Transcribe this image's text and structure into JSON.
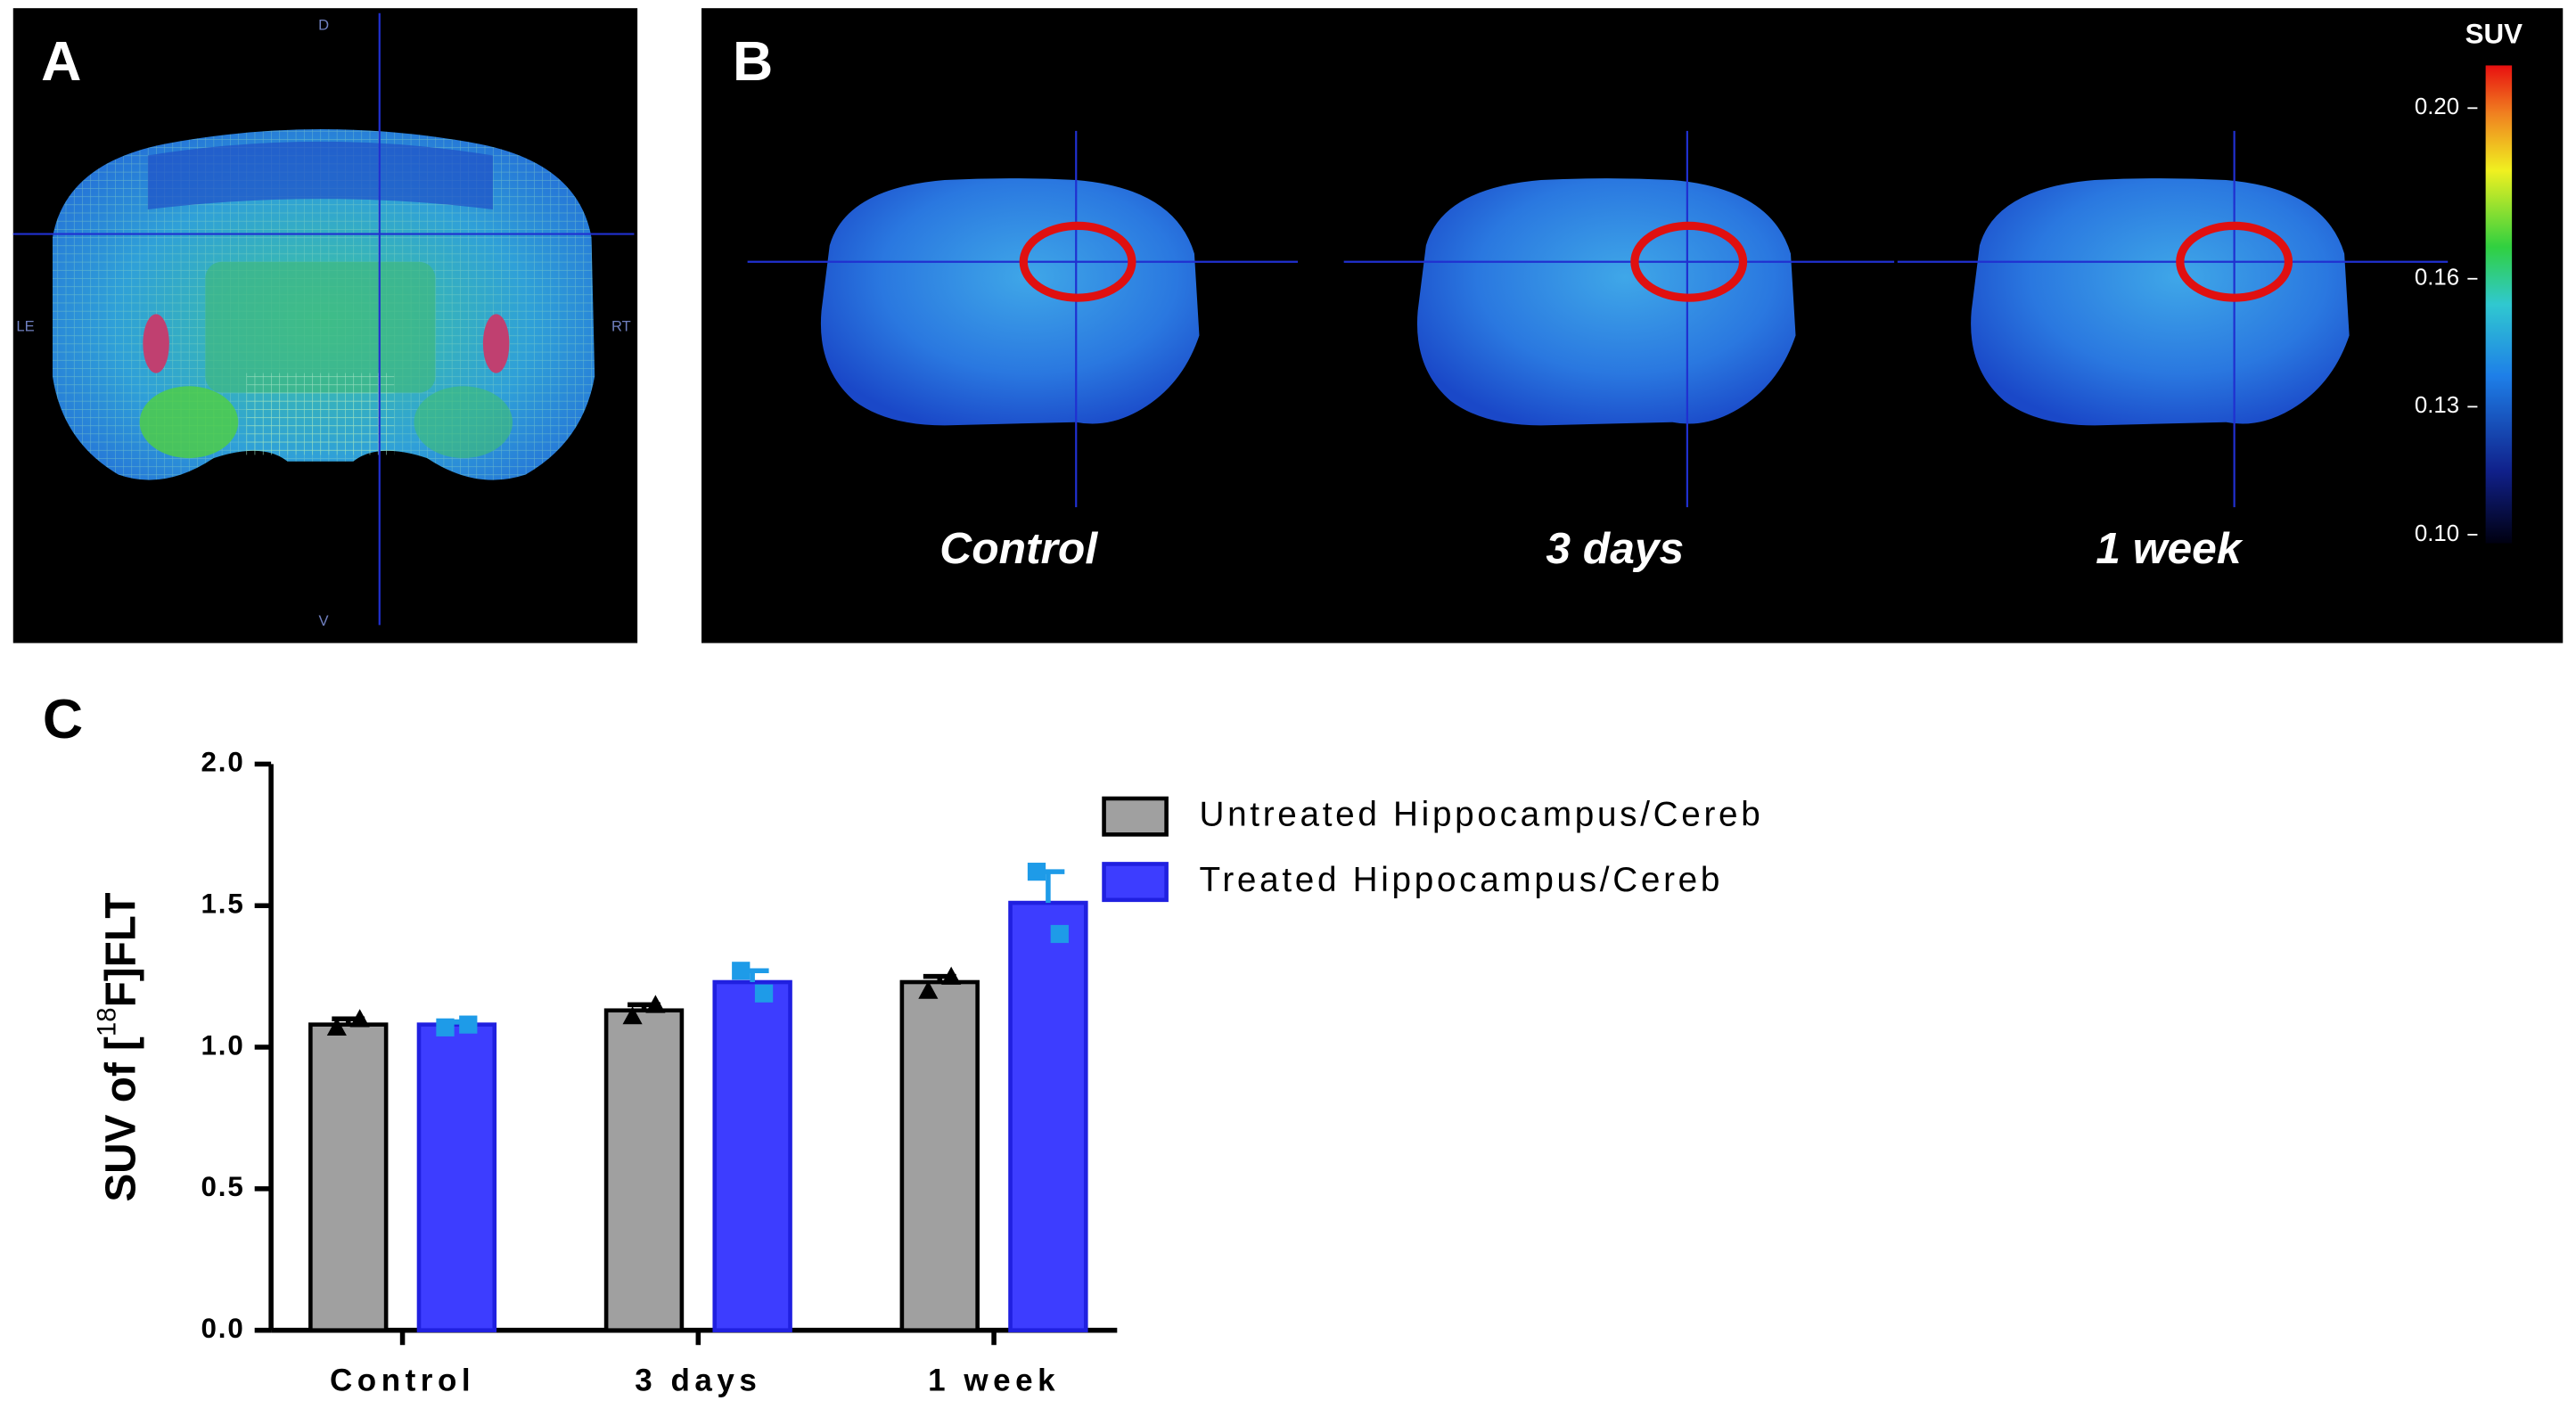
{
  "panel_a": {
    "label": "A",
    "orientation": {
      "top": "D",
      "bottom": "V",
      "left": "LE",
      "right": "RT"
    }
  },
  "panel_b": {
    "label": "B",
    "images": [
      "Control",
      "3 days",
      "1 week"
    ],
    "colorbar": {
      "title": "SUV",
      "clim": [
        0.098,
        0.21
      ],
      "ticks": [
        {
          "value": 0.2,
          "label": "0.20"
        },
        {
          "value": 0.16,
          "label": "0.16"
        },
        {
          "value": 0.13,
          "label": "0.13"
        },
        {
          "value": 0.1,
          "label": "0.10"
        }
      ]
    }
  },
  "chart_data": {
    "type": "bar",
    "panel_label": "C",
    "ylabel": {
      "before": "SUV of [",
      "sup": "18",
      "after": "F]FLT"
    },
    "categories": [
      "Control",
      "3 days",
      "1 week"
    ],
    "series": [
      {
        "name": "Untreated Hippocampus/Cereb",
        "color": "#a0a0a0",
        "values": [
          1.08,
          1.13,
          1.23
        ],
        "errors": [
          0.02,
          0.02,
          0.02
        ],
        "points": [
          [
            1.07,
            1.1
          ],
          [
            1.11,
            1.15
          ],
          [
            1.2,
            1.25
          ]
        ],
        "marker": "triangle",
        "marker_color": "#000000"
      },
      {
        "name": "Treated Hippocampus/Cereb",
        "color": "#3d3dff",
        "values": [
          1.08,
          1.23,
          1.51
        ],
        "errors": [
          0.01,
          0.04,
          0.11
        ],
        "points": [
          [
            1.07,
            1.08
          ],
          [
            1.27,
            1.19
          ],
          [
            1.62,
            1.4
          ]
        ],
        "marker": "square",
        "marker_color": "#1e9be8"
      }
    ],
    "ylim": [
      0,
      2
    ],
    "yticks": [
      {
        "value": 0,
        "label": "0.0"
      },
      {
        "value": 0.5,
        "label": "0.5"
      },
      {
        "value": 1,
        "label": "1.0"
      },
      {
        "value": 1.5,
        "label": "1.5"
      },
      {
        "value": 2,
        "label": "2.0"
      }
    ]
  }
}
